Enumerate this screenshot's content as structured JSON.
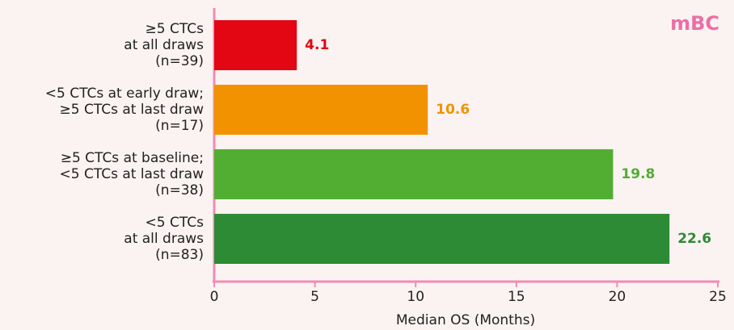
{
  "chart_data": {
    "type": "bar",
    "orientation": "horizontal",
    "title": "mBC",
    "categories": [
      [
        "≥5 CTCs",
        "at all draws",
        "(n=39)"
      ],
      [
        "<5 CTCs at early draw;",
        "≥5 CTCs at last draw",
        "(n=17)"
      ],
      [
        "≥5 CTCs at baseline;",
        "<5 CTCs at last draw",
        "(n=38)"
      ],
      [
        "<5 CTCs",
        "at all draws",
        "(n=83)"
      ]
    ],
    "values": [
      4.1,
      10.6,
      19.8,
      22.6
    ],
    "colors": [
      "#e30613",
      "#f39200",
      "#52ae32",
      "#2e8b35"
    ],
    "x_label": "Median OS (Months)",
    "xlim": [
      0,
      25
    ],
    "xticks": [
      0,
      5,
      10,
      15,
      20,
      25
    ]
  }
}
